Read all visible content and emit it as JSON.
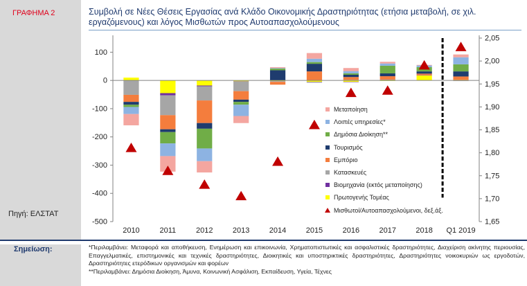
{
  "figure_label": "ΓΡΑΦΗΜΑ 2",
  "title": "Συμβολή σε Νέες Θέσεις Εργασίας ανά Κλάδο Οικονομικής Δραστηριότητας (ετήσια μεταβολή, σε χιλ. εργαζόμενους) και λόγος Μισθωτών προς Αυτοαπασχολούμενους",
  "source": "Πηγή: ΕΛΣΤΑΤ",
  "note_label": "Σημείωση:",
  "notes": [
    "*Περιλαμβάνει: Μεταφορά και αποθήκευση, Ενημέρωση και επικοινωνία, Χρηματοπιστωτικές και ασφαλιστικές δραστηριότητες, Διαχείριση ακίνητης περιουσίας, Επαγγελματικές, επιστημονικές και τεχνικές δραστηριότητες, Διοικητικές και υποστηρικτικές δραστηριότητες, Δραστηριότητες νοικοκυριών ως εργοδοτών, Δραστηριότητες ετερόδικων οργανισμών και φορέων",
    "**Περιλαμβάνει: Δημόσια Διοίκηση, Άμυνα, Κοινωνική Ασφάλιση, Εκπαίδευση, Υγεία, Τέχνες"
  ],
  "chart_data": {
    "type": "bar",
    "stacked": true,
    "categories": [
      "2010",
      "2011",
      "2012",
      "2013",
      "2014",
      "2015",
      "2016",
      "2017",
      "2018",
      "Q1 2019"
    ],
    "ylim": [
      -500,
      150
    ],
    "yticks": [
      100,
      0,
      -100,
      -200,
      -300,
      -400,
      -500
    ],
    "y2lim": [
      1.65,
      2.05
    ],
    "y2ticks": [
      "2,05",
      "2,00",
      "1,95",
      "1,90",
      "1,85",
      "1,80",
      "1,75",
      "1,70",
      "1,65"
    ],
    "y2values": [
      2.05,
      2.0,
      1.95,
      1.9,
      1.85,
      1.8,
      1.75,
      1.7,
      1.65
    ],
    "legend_position": "right-inside",
    "separator_before": "Q1 2019",
    "series": [
      {
        "name": "Πρωτογενής Τομέας",
        "color": "#ffff00",
        "values": [
          10,
          -45,
          -18,
          -3,
          -2,
          -5,
          -5,
          -2,
          18,
          2
        ]
      },
      {
        "name": "Βιομηχανία (εκτός μεταποίησης)",
        "color": "#7030a0",
        "values": [
          -1,
          -8,
          -3,
          -1,
          0,
          -1,
          -1,
          1,
          1,
          -1
        ]
      },
      {
        "name": "Κατασκευές",
        "color": "#a6a6a6",
        "values": [
          -50,
          -70,
          -50,
          -34,
          -3,
          -2,
          2,
          2,
          0,
          -1
        ]
      },
      {
        "name": "Εμπόριο",
        "color": "#f47d3d",
        "values": [
          -25,
          -50,
          -80,
          -30,
          -10,
          32,
          10,
          12,
          5,
          12
        ]
      },
      {
        "name": "Τουρισμός",
        "color": "#1f3c6e",
        "values": [
          -10,
          -10,
          -20,
          -8,
          36,
          27,
          8,
          10,
          8,
          18
        ]
      },
      {
        "name": "Δημόσια Διοίκηση**",
        "color": "#70ad47",
        "values": [
          -8,
          -40,
          -70,
          -10,
          6,
          6,
          5,
          27,
          15,
          25
        ]
      },
      {
        "name": "Λοιπές υπηρεσίες*",
        "color": "#8db3e2",
        "values": [
          -25,
          -45,
          -45,
          -40,
          2,
          12,
          8,
          8,
          6,
          25
        ]
      },
      {
        "name": "Μεταποίηση",
        "color": "#f4a6a0",
        "values": [
          -40,
          -55,
          -40,
          -25,
          3,
          20,
          11,
          6,
          2,
          10
        ]
      }
    ],
    "line_series": {
      "name": "Μισθωτοί/Αυτοαπασχολούμενοι, δεξ.άξ.",
      "axis": "right",
      "marker": "triangle",
      "color": "#c00000",
      "values": [
        1.81,
        1.76,
        1.73,
        1.705,
        1.78,
        1.86,
        1.93,
        1.935,
        1.99,
        2.03
      ]
    },
    "legend_order": [
      "Μεταποίηση",
      "Λοιπές υπηρεσίες*",
      "Δημόσια Διοίκηση**",
      "Τουρισμός",
      "Εμπόριο",
      "Κατασκευές",
      "Βιομηχανία (εκτός μεταποίησης)",
      "Πρωτογενής Τομέας",
      "Μισθωτοί/Αυτοαπασχολούμενοι, δεξ.άξ."
    ]
  }
}
